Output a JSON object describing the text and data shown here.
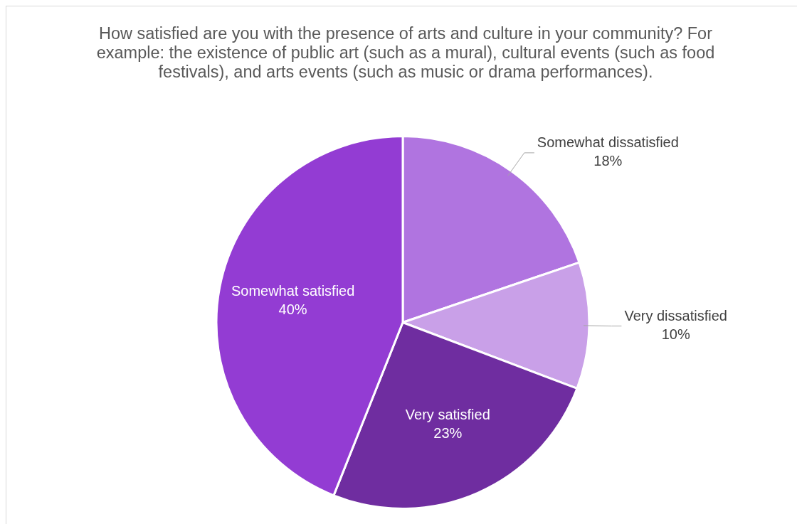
{
  "chart_data": {
    "type": "pie",
    "title": "How satisfied are you with the presence of arts and culture in your community? For example: the existence of public art (such as a mural), cultural events (such as food festivals), and arts events (such as music or drama performances).",
    "categories": [
      "Somewhat dissatisfied",
      "Very dissatisfied",
      "Very satisfied",
      "Somewhat satisfied"
    ],
    "values": [
      18,
      10,
      23,
      40
    ],
    "value_labels": [
      "18%",
      "10%",
      "23%",
      "40%"
    ],
    "colors": [
      "#b074e0",
      "#c9a0e8",
      "#6f2da0",
      "#933cd3"
    ],
    "legend": false
  }
}
